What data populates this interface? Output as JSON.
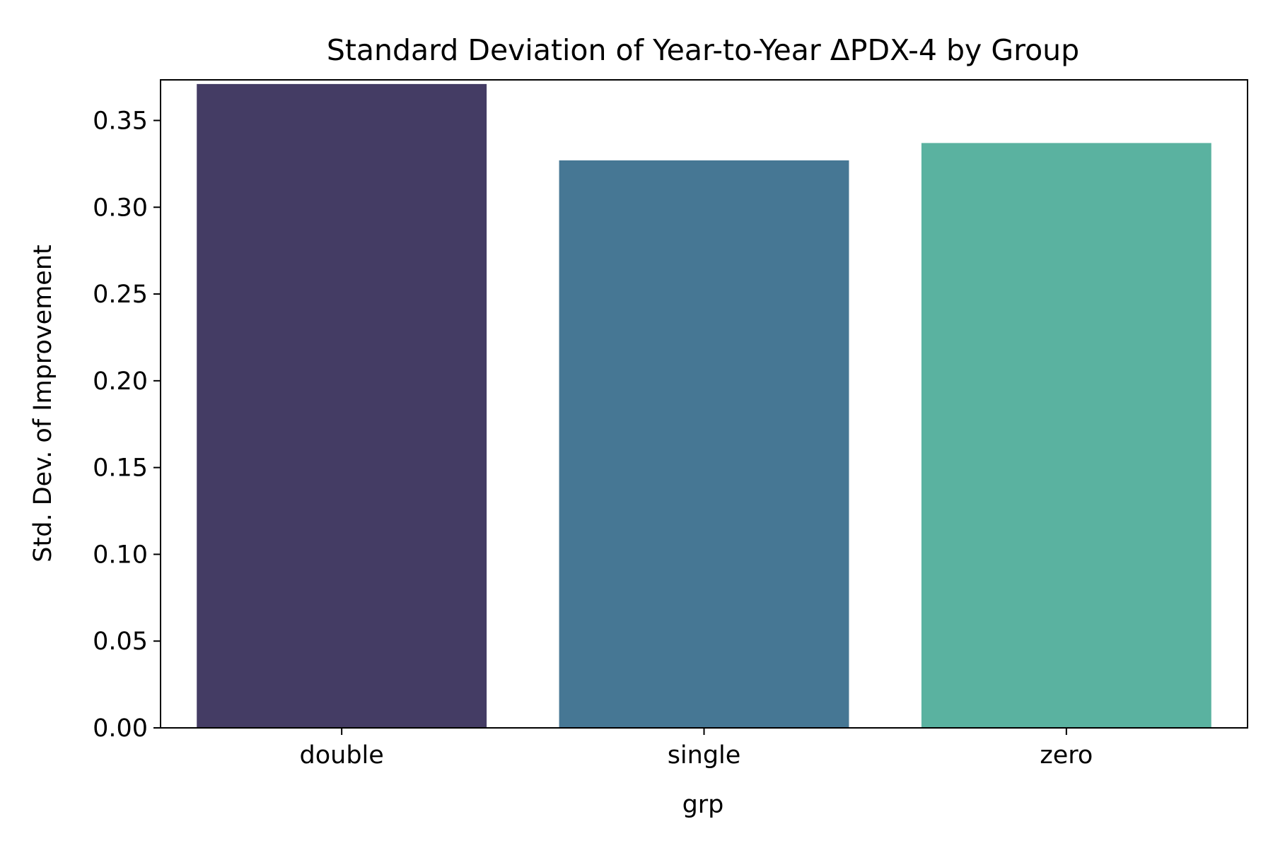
{
  "chart_data": {
    "type": "bar",
    "title": "Standard Deviation of Year-to-Year ΔPDX-4 by Group",
    "xlabel": "grp",
    "ylabel": "Std. Dev. of Improvement",
    "categories": [
      "double",
      "single",
      "zero"
    ],
    "values": [
      0.371,
      0.327,
      0.337
    ],
    "colors": [
      "#443c64",
      "#467794",
      "#5ab2a0"
    ],
    "ylim": [
      0,
      0.3734
    ],
    "yticks": [
      0.0,
      0.05,
      0.1,
      0.15,
      0.2,
      0.25,
      0.3,
      0.35
    ],
    "ytick_labels": [
      "0.00",
      "0.05",
      "0.10",
      "0.15",
      "0.20",
      "0.25",
      "0.30",
      "0.35"
    ],
    "grid": false,
    "legend": "none"
  }
}
